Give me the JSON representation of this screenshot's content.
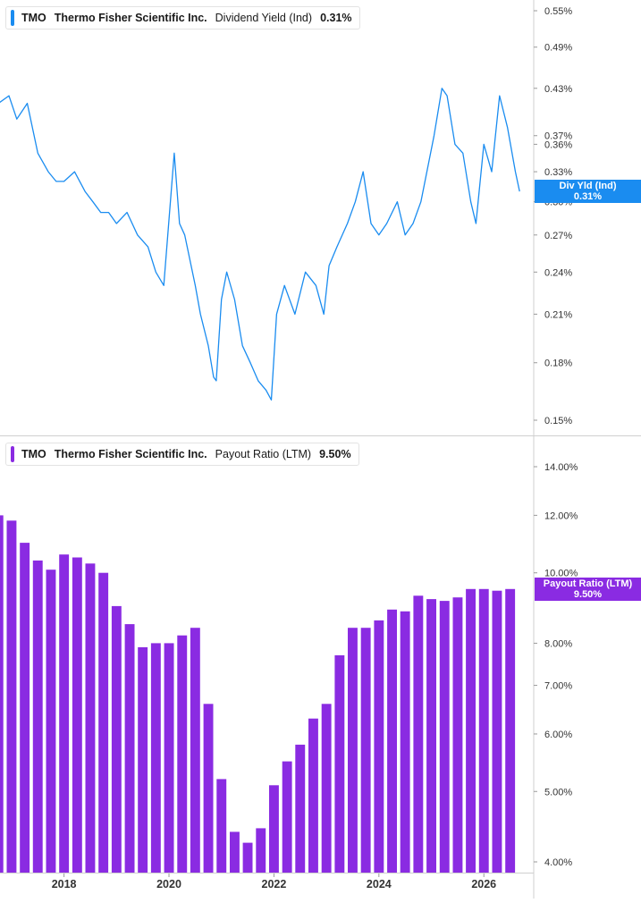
{
  "chart_data": [
    {
      "type": "line",
      "ticker": "TMO",
      "company": "Thermo Fisher Scientific Inc.",
      "metric": "Dividend Yield (Ind)",
      "current_value": "0.31%",
      "badge_label": "Div Yld (Ind)",
      "badge_value": "0.31%",
      "color": "#1a8cf0",
      "y_scale": "log",
      "ylim": [
        0.145,
        0.57
      ],
      "yticks": [
        "0.55%",
        "0.49%",
        "0.43%",
        "0.37%",
        "0.36%",
        "0.33%",
        "0.30%",
        "0.27%",
        "0.24%",
        "0.21%",
        "0.18%",
        "0.15%"
      ],
      "ytick_values": [
        0.55,
        0.49,
        0.43,
        0.37,
        0.36,
        0.33,
        0.3,
        0.27,
        0.24,
        0.21,
        0.18,
        0.15
      ],
      "x": [
        2016.75,
        2016.95,
        2017.1,
        2017.3,
        2017.5,
        2017.7,
        2017.85,
        2018.0,
        2018.2,
        2018.4,
        2018.55,
        2018.7,
        2018.85,
        2019.0,
        2019.2,
        2019.4,
        2019.6,
        2019.75,
        2019.9,
        2020.1,
        2020.2,
        2020.3,
        2020.5,
        2020.6,
        2020.75,
        2020.85,
        2020.9,
        2021.0,
        2021.1,
        2021.25,
        2021.4,
        2021.55,
        2021.7,
        2021.85,
        2021.95,
        2022.05,
        2022.2,
        2022.4,
        2022.6,
        2022.8,
        2022.95,
        2023.05,
        2023.2,
        2023.4,
        2023.55,
        2023.7,
        2023.85,
        2024.0,
        2024.15,
        2024.35,
        2024.5,
        2024.65,
        2024.8,
        2024.95,
        2025.05,
        2025.2,
        2025.3,
        2025.45,
        2025.6,
        2025.75,
        2025.85,
        2026.0,
        2026.15,
        2026.3,
        2026.45,
        2026.6,
        2026.68
      ],
      "values": [
        0.41,
        0.42,
        0.39,
        0.41,
        0.35,
        0.33,
        0.32,
        0.32,
        0.33,
        0.31,
        0.3,
        0.29,
        0.29,
        0.28,
        0.29,
        0.27,
        0.26,
        0.24,
        0.23,
        0.35,
        0.28,
        0.27,
        0.23,
        0.21,
        0.19,
        0.172,
        0.17,
        0.22,
        0.24,
        0.22,
        0.19,
        0.18,
        0.17,
        0.165,
        0.16,
        0.21,
        0.23,
        0.21,
        0.24,
        0.23,
        0.21,
        0.245,
        0.26,
        0.28,
        0.3,
        0.33,
        0.28,
        0.27,
        0.28,
        0.3,
        0.27,
        0.28,
        0.3,
        0.34,
        0.37,
        0.43,
        0.42,
        0.36,
        0.35,
        0.3,
        0.28,
        0.36,
        0.33,
        0.42,
        0.38,
        0.33,
        0.31
      ]
    },
    {
      "type": "bar",
      "ticker": "TMO",
      "company": "Thermo Fisher Scientific Inc.",
      "metric": "Payout Ratio (LTM)",
      "current_value": "9.50%",
      "badge_label": "Payout Ratio (LTM)",
      "badge_value": "9.50%",
      "color": "#8a2be2",
      "y_scale": "log",
      "ylim": [
        3.9,
        15.2
      ],
      "yticks": [
        "14.00%",
        "12.00%",
        "10.00%",
        "8.00%",
        "7.00%",
        "6.00%",
        "5.00%",
        "4.00%"
      ],
      "ytick_values": [
        14,
        12,
        10,
        8,
        7,
        6,
        5,
        4
      ],
      "x": [
        2016.75,
        2017.0,
        2017.25,
        2017.5,
        2017.75,
        2018.0,
        2018.25,
        2018.5,
        2018.75,
        2019.0,
        2019.25,
        2019.5,
        2019.75,
        2020.0,
        2020.25,
        2020.5,
        2020.75,
        2021.0,
        2021.25,
        2021.5,
        2021.75,
        2022.0,
        2022.25,
        2022.5,
        2022.75,
        2023.0,
        2023.25,
        2023.5,
        2023.75,
        2024.0,
        2024.25,
        2024.5,
        2024.75,
        2025.0,
        2025.25,
        2025.5,
        2025.75,
        2026.0,
        2026.25,
        2026.5
      ],
      "values": [
        12.0,
        11.8,
        11.0,
        10.4,
        10.1,
        10.6,
        10.5,
        10.3,
        10.0,
        9.0,
        8.5,
        7.9,
        8.0,
        8.0,
        8.2,
        8.4,
        6.6,
        5.2,
        4.4,
        4.25,
        4.45,
        5.1,
        5.5,
        5.8,
        6.3,
        6.6,
        7.7,
        8.4,
        8.4,
        8.6,
        8.9,
        8.85,
        9.3,
        9.2,
        9.15,
        9.25,
        9.5,
        9.5,
        9.45,
        9.5
      ]
    }
  ],
  "x_axis": {
    "labels": [
      "2018",
      "2020",
      "2022",
      "2024",
      "2026"
    ],
    "label_values": [
      2018,
      2020,
      2022,
      2024,
      2026
    ],
    "range": [
      2016.78,
      2026.95
    ]
  }
}
